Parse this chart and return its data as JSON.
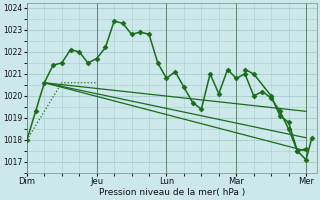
{
  "bg_color": "#cce8ea",
  "grid_color": "#aacccc",
  "line_color": "#1a6b1a",
  "marker_color": "#1a6b1a",
  "xlabel": "Pression niveau de la mer( hPa )",
  "ylim": [
    1016.5,
    1024.2
  ],
  "yticks": [
    1017,
    1018,
    1019,
    1020,
    1021,
    1022,
    1023,
    1024
  ],
  "xlim": [
    0,
    4.15
  ],
  "x_day_positions": [
    0,
    1,
    2,
    3,
    4
  ],
  "x_day_labels": [
    "Dim",
    "Jeu",
    "Lun",
    "Mar",
    "Mer"
  ],
  "main_series": {
    "x": [
      0.0,
      0.125,
      0.25,
      0.375,
      0.5,
      0.625,
      0.75,
      0.875,
      1.0,
      1.125,
      1.25,
      1.375,
      1.5,
      1.625,
      1.75,
      1.875,
      2.0,
      2.125,
      2.25,
      2.375,
      2.5,
      2.625,
      2.75,
      2.875,
      3.0,
      3.125,
      3.25,
      3.375,
      3.5,
      3.625,
      3.75,
      3.875,
      4.0
    ],
    "y": [
      1018.0,
      1019.3,
      1020.6,
      1021.4,
      1021.5,
      1022.1,
      1022.0,
      1021.5,
      1021.7,
      1022.2,
      1023.4,
      1023.3,
      1022.8,
      1022.9,
      1022.8,
      1021.5,
      1020.8,
      1021.1,
      1020.4,
      1019.7,
      1019.4,
      1021.0,
      1020.1,
      1021.2,
      1020.8,
      1021.0,
      1020.0,
      1020.2,
      1019.9,
      1019.3,
      1018.5,
      1017.5,
      1017.6
    ],
    "marker": "D",
    "markersize": 2.5,
    "linewidth": 1.1
  },
  "dotted_series": {
    "x": [
      0.0,
      0.25,
      0.5,
      0.75,
      1.0
    ],
    "y": [
      1018.0,
      1019.3,
      1020.6,
      1020.6,
      1020.6
    ],
    "linewidth": 0.9
  },
  "straight_lines": [
    {
      "x": [
        0.25,
        4.0
      ],
      "y": [
        1020.6,
        1019.3
      ]
    },
    {
      "x": [
        0.25,
        4.0
      ],
      "y": [
        1020.6,
        1018.1
      ]
    },
    {
      "x": [
        0.25,
        4.0
      ],
      "y": [
        1020.6,
        1017.5
      ]
    }
  ],
  "extra_points": {
    "x": [
      3.125,
      3.25,
      3.5,
      3.625,
      3.75,
      3.875,
      4.0,
      4.083
    ],
    "y": [
      1021.2,
      1021.0,
      1020.0,
      1019.1,
      1018.8,
      1017.5,
      1017.1,
      1018.1
    ],
    "marker": "D",
    "markersize": 2.5,
    "linewidth": 1.1
  }
}
